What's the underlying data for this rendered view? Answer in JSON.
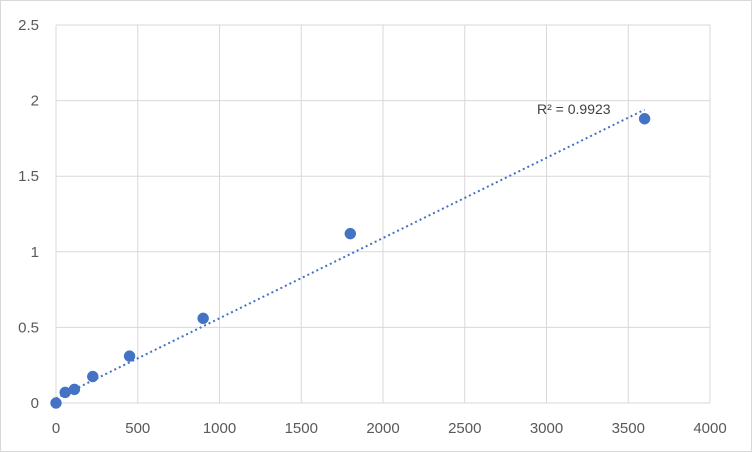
{
  "chart_data": {
    "type": "scatter",
    "title": "",
    "xlabel": "",
    "ylabel": "",
    "xlim": [
      0,
      4000
    ],
    "ylim": [
      0,
      2.5
    ],
    "x_ticks": [
      "0",
      "500",
      "1000",
      "1500",
      "2000",
      "2500",
      "3000",
      "3500",
      "4000"
    ],
    "y_ticks": [
      "0",
      "0.5",
      "1",
      "1.5",
      "2",
      "2.5"
    ],
    "grid": true,
    "legend": "none",
    "series": [
      {
        "x": [
          0,
          56.25,
          112.5,
          225,
          450,
          900,
          1800,
          3600
        ],
        "y": [
          0.0,
          0.07,
          0.09,
          0.175,
          0.31,
          0.56,
          1.12,
          1.88
        ],
        "color": "#4472c4"
      }
    ],
    "trendline": {
      "type": "linear",
      "style": "dotted",
      "color": "#4472c4",
      "x_range": [
        0,
        3600
      ],
      "y_at_start": 0.03,
      "y_at_end": 1.94
    },
    "annotations": [
      "R² = 0.9923"
    ]
  }
}
